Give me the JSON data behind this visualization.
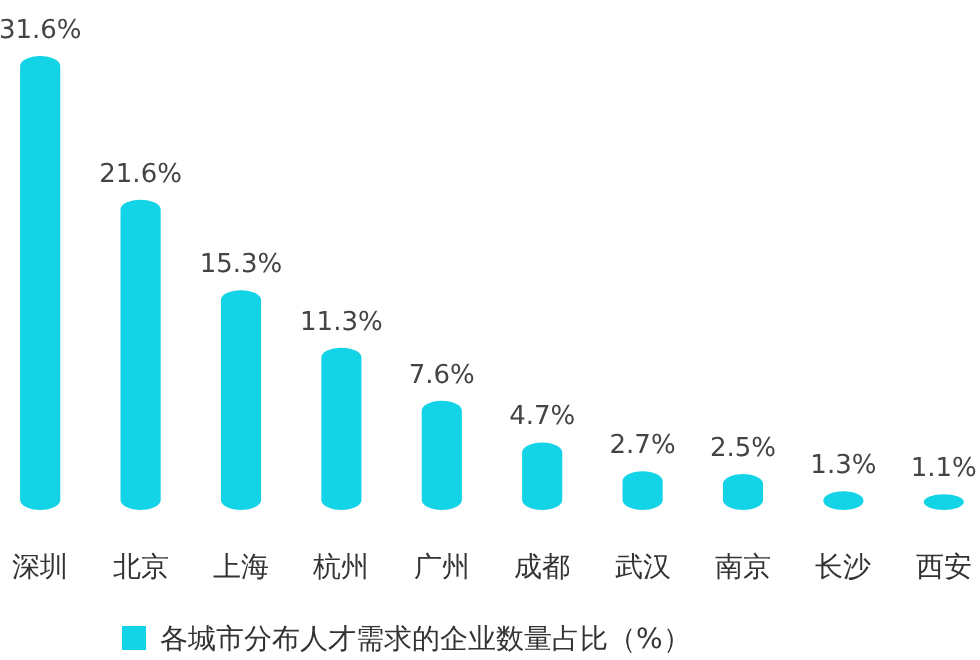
{
  "chart_data": {
    "type": "bar",
    "categories": [
      "深圳",
      "北京",
      "上海",
      "杭州",
      "广州",
      "成都",
      "武汉",
      "南京",
      "长沙",
      "西安"
    ],
    "series": [
      {
        "name": "各城市分布人才需求的企业数量占比（%）",
        "color": "#13d3e6",
        "values": [
          31.6,
          21.6,
          15.3,
          11.3,
          7.6,
          4.7,
          2.7,
          2.5,
          1.3,
          1.1
        ],
        "value_labels": [
          "31.6%",
          "21.6%",
          "15.3%",
          "11.3%",
          "7.6%",
          "4.7%",
          "2.7%",
          "2.5%",
          "1.3%",
          "1.1%"
        ]
      }
    ],
    "legend": "bottom"
  }
}
